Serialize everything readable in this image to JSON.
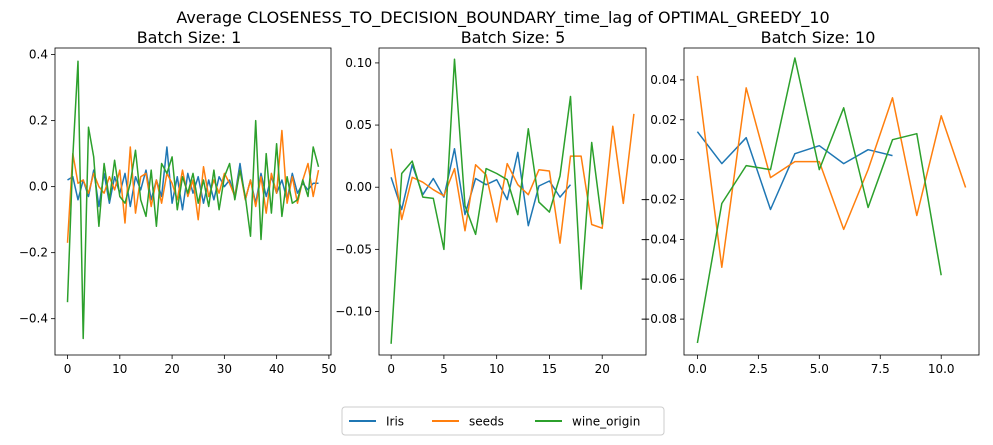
{
  "suptitle": "Average CLOSENESS_TO_DECISION_BOUNDARY_time_lag of OPTIMAL_GREEDY_10",
  "colors": {
    "Iris": "#1f77b4",
    "seeds": "#ff7f0e",
    "wine_origin": "#2ca02c"
  },
  "legend": {
    "placement": "bottom-center",
    "entries": [
      "Iris",
      "seeds",
      "wine_origin"
    ]
  },
  "chart_data": [
    {
      "type": "line",
      "title": "Batch Size: 1",
      "xlim": [
        -2.4,
        50.4
      ],
      "ylim": [
        -0.51,
        0.42
      ],
      "xticks": [
        0,
        10,
        20,
        30,
        40,
        50
      ],
      "xtick_labels": [
        "0",
        "10",
        "20",
        "30",
        "40",
        "50"
      ],
      "yticks": [
        -0.4,
        -0.2,
        0.0,
        0.2,
        0.4
      ],
      "ytick_labels": [
        "−0.4",
        "−0.2",
        "0.0",
        "0.2",
        "0.4"
      ],
      "series": [
        {
          "name": "Iris",
          "x": [
            0,
            1,
            2,
            3,
            4,
            5,
            6,
            7,
            8,
            9,
            10,
            11,
            12,
            13,
            14,
            15,
            16,
            17,
            18,
            19,
            20,
            21,
            22,
            23,
            24,
            25,
            26,
            27,
            28,
            29,
            30,
            31,
            32,
            33,
            34,
            35,
            36,
            37,
            38,
            39,
            40,
            41,
            42,
            43,
            44,
            45,
            46,
            47,
            48
          ],
          "y": [
            0.02,
            0.03,
            -0.04,
            0.02,
            -0.03,
            0.05,
            -0.06,
            0.04,
            -0.05,
            0.03,
            -0.02,
            0.04,
            -0.06,
            0.03,
            -0.01,
            0.05,
            -0.04,
            0.02,
            -0.03,
            0.12,
            -0.05,
            0.03,
            -0.07,
            0.04,
            -0.02,
            0.03,
            -0.05,
            0.02,
            -0.04,
            0.03,
            0.0,
            0.02,
            -0.03,
            0.07,
            -0.04,
            0.02,
            -0.05,
            0.04,
            -0.03,
            0.03,
            -0.02,
            0.02,
            -0.04,
            0.04,
            -0.02,
            0.01,
            -0.01,
            0.01,
            0.01
          ]
        },
        {
          "name": "seeds",
          "x": [
            0,
            1,
            2,
            3,
            4,
            5,
            6,
            7,
            8,
            9,
            10,
            11,
            12,
            13,
            14,
            15,
            16,
            17,
            18,
            19,
            20,
            21,
            22,
            23,
            24,
            25,
            26,
            27,
            28,
            29,
            30,
            31,
            32,
            33,
            34,
            35,
            36,
            37,
            38,
            39,
            40,
            41,
            42,
            43,
            44,
            45,
            46,
            47,
            48
          ],
          "y": [
            -0.17,
            0.1,
            0.01,
            0.02,
            -0.02,
            0.04,
            0.0,
            -0.02,
            0.03,
            -0.01,
            0.05,
            -0.11,
            0.12,
            -0.08,
            0.03,
            0.04,
            -0.06,
            0.02,
            -0.05,
            0.04,
            0.01,
            -0.04,
            0.05,
            -0.03,
            0.02,
            -0.1,
            0.06,
            -0.03,
            0.02,
            -0.02,
            0.04,
            0.01,
            -0.03,
            0.05,
            -0.04,
            0.02,
            -0.06,
            0.03,
            -0.08,
            0.04,
            -0.02,
            0.17,
            -0.05,
            0.03,
            -0.05,
            0.02,
            0.07,
            -0.03,
            0.05
          ]
        },
        {
          "name": "wine_origin",
          "x": [
            0,
            1,
            2,
            3,
            4,
            5,
            6,
            7,
            8,
            9,
            10,
            11,
            12,
            13,
            14,
            15,
            16,
            17,
            18,
            19,
            20,
            21,
            22,
            23,
            24,
            25,
            26,
            27,
            28,
            29,
            30,
            31,
            32,
            33,
            34,
            35,
            36,
            37,
            38,
            39,
            40,
            41,
            42,
            43,
            44,
            45,
            46,
            47,
            48
          ],
          "y": [
            -0.35,
            0.09,
            0.38,
            -0.46,
            0.18,
            0.09,
            -0.12,
            0.07,
            -0.04,
            0.08,
            -0.03,
            -0.05,
            0.01,
            0.11,
            -0.04,
            -0.09,
            0.05,
            -0.12,
            0.07,
            0.04,
            0.09,
            -0.07,
            0.03,
            -0.02,
            0.04,
            -0.05,
            0.02,
            -0.06,
            0.05,
            -0.07,
            0.03,
            0.07,
            -0.04,
            0.05,
            -0.03,
            -0.15,
            0.2,
            -0.16,
            0.1,
            -0.08,
            0.13,
            -0.09,
            0.03,
            -0.05,
            -0.04,
            0.02,
            -0.03,
            0.12,
            0.06
          ]
        }
      ]
    },
    {
      "type": "line",
      "title": "Batch Size: 5",
      "xlim": [
        -1.15,
        24.15
      ],
      "ylim": [
        -0.135,
        0.112
      ],
      "xticks": [
        0,
        5,
        10,
        15,
        20
      ],
      "xtick_labels": [
        "0",
        "5",
        "10",
        "15",
        "20"
      ],
      "yticks": [
        -0.1,
        -0.05,
        0.0,
        0.05,
        0.1
      ],
      "ytick_labels": [
        "−0.10",
        "−0.05",
        "0.00",
        "0.05",
        "0.10"
      ],
      "series": [
        {
          "name": "Iris",
          "x": [
            0,
            1,
            2,
            3,
            4,
            5,
            6,
            7,
            8,
            9,
            10,
            11,
            12,
            13,
            14,
            15,
            16,
            17
          ],
          "y": [
            0.008,
            -0.018,
            0.018,
            -0.006,
            0.007,
            -0.008,
            0.031,
            -0.022,
            0.007,
            0.002,
            0.006,
            -0.01,
            0.028,
            -0.031,
            0.001,
            0.005,
            -0.008,
            0.002
          ]
        },
        {
          "name": "seeds",
          "x": [
            0,
            1,
            2,
            3,
            4,
            5,
            6,
            7,
            8,
            9,
            10,
            11,
            12,
            13,
            14,
            15,
            16,
            17,
            18,
            19,
            20,
            21,
            22,
            23
          ],
          "y": [
            0.031,
            -0.026,
            0.008,
            0.004,
            -0.002,
            -0.007,
            0.015,
            -0.035,
            0.018,
            0.01,
            -0.028,
            0.019,
            0.002,
            -0.006,
            0.014,
            0.013,
            -0.045,
            0.025,
            0.025,
            -0.03,
            -0.033,
            0.049,
            -0.013,
            0.059
          ]
        },
        {
          "name": "wine_origin",
          "x": [
            0,
            1,
            2,
            3,
            4,
            5,
            6,
            7,
            8,
            9,
            10,
            11,
            12,
            13,
            14,
            15,
            16,
            17,
            18,
            19,
            20
          ],
          "y": [
            -0.126,
            0.011,
            0.021,
            -0.008,
            -0.009,
            -0.05,
            0.103,
            -0.015,
            -0.038,
            0.015,
            0.011,
            0.006,
            -0.022,
            0.047,
            -0.012,
            -0.02,
            0.009,
            0.073,
            -0.082,
            0.036,
            -0.03
          ]
        }
      ]
    },
    {
      "type": "line",
      "title": "Batch Size: 10",
      "xlim": [
        -0.55,
        11.55
      ],
      "ylim": [
        -0.098,
        0.056
      ],
      "xticks": [
        0,
        2.5,
        5.0,
        7.5,
        10.0
      ],
      "xtick_labels": [
        "0.0",
        "2.5",
        "5.0",
        "7.5",
        "10.0"
      ],
      "yticks": [
        -0.08,
        -0.06,
        -0.04,
        -0.02,
        0.0,
        0.02,
        0.04
      ],
      "ytick_labels": [
        "−0.08",
        "−0.06",
        "−0.04",
        "−0.02",
        "0.00",
        "0.02",
        "0.04"
      ],
      "series": [
        {
          "name": "Iris",
          "x": [
            0,
            1,
            2,
            3,
            4,
            5,
            6,
            7,
            8
          ],
          "y": [
            0.014,
            -0.002,
            0.011,
            -0.025,
            0.003,
            0.007,
            -0.002,
            0.005,
            0.002
          ]
        },
        {
          "name": "seeds",
          "x": [
            0,
            1,
            2,
            3,
            4,
            5,
            6,
            7,
            8,
            9,
            10,
            11
          ],
          "y": [
            0.042,
            -0.054,
            0.036,
            -0.009,
            -0.001,
            -0.001,
            -0.035,
            -0.005,
            0.031,
            -0.028,
            0.022,
            -0.014
          ]
        },
        {
          "name": "wine_origin",
          "x": [
            0,
            1,
            2,
            3,
            4,
            5,
            6,
            7,
            8,
            9,
            10
          ],
          "y": [
            -0.092,
            -0.022,
            -0.003,
            -0.005,
            0.051,
            -0.005,
            0.026,
            -0.024,
            0.01,
            0.013,
            -0.058
          ]
        }
      ]
    }
  ]
}
